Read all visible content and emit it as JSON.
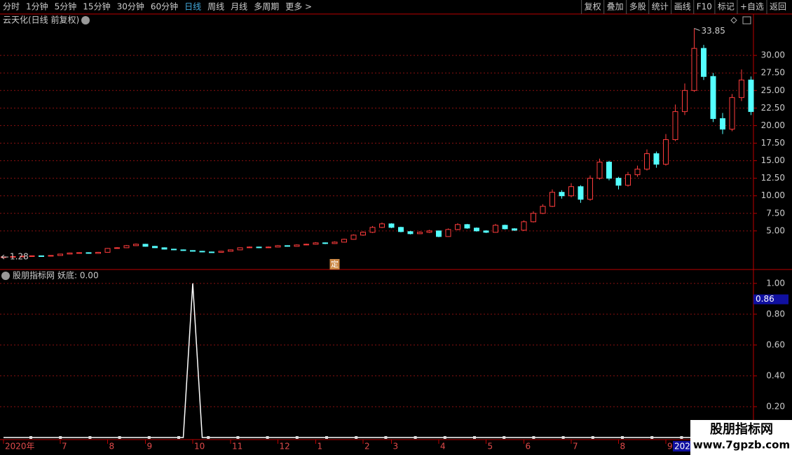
{
  "toolbar": {
    "left": [
      "分时",
      "1分钟",
      "5分钟",
      "15分钟",
      "30分钟",
      "60分钟",
      "日线",
      "周线",
      "月线",
      "多周期",
      "更多 >"
    ],
    "active": "日线",
    "right": [
      "复权",
      "叠加",
      "多股",
      "统计",
      "画线",
      "F10",
      "标记",
      "+自选",
      "返回"
    ]
  },
  "chart_data": [
    {
      "type": "candlestick",
      "title": "云天化(日线 前复权)",
      "up_color": "#ff3c3c",
      "down_color": "#54ffff",
      "grid": true,
      "high_marker": 33.85,
      "low_marker": 1.28,
      "flag_label": "定",
      "x_cursor_label": "202",
      "categories": [
        "2020年",
        null,
        null,
        null,
        null,
        null,
        "7",
        null,
        null,
        null,
        null,
        "8",
        null,
        null,
        null,
        "9",
        null,
        null,
        null,
        null,
        "10",
        null,
        null,
        null,
        "11",
        null,
        null,
        null,
        null,
        "12",
        null,
        null,
        null,
        "1",
        null,
        null,
        null,
        null,
        "2",
        null,
        null,
        "3",
        null,
        null,
        null,
        null,
        "4",
        null,
        null,
        null,
        null,
        "5",
        null,
        null,
        null,
        "6",
        null,
        null,
        null,
        null,
        "7",
        null,
        null,
        null,
        null,
        "8",
        null,
        null,
        null,
        null,
        "9",
        null,
        null,
        null,
        null,
        null,
        null,
        null,
        null,
        null
      ],
      "candles": [
        [
          1.28,
          1.33,
          1.28,
          1.3
        ],
        [
          1.3,
          1.38,
          1.28,
          1.35
        ],
        [
          1.35,
          1.43,
          1.33,
          1.4
        ],
        [
          1.4,
          1.48,
          1.37,
          1.45
        ],
        [
          1.45,
          1.47,
          1.37,
          1.4
        ],
        [
          1.4,
          1.54,
          1.38,
          1.5
        ],
        [
          1.5,
          1.74,
          1.47,
          1.7
        ],
        [
          1.7,
          1.9,
          1.66,
          1.85
        ],
        [
          1.85,
          1.96,
          1.8,
          1.9
        ],
        [
          1.9,
          1.95,
          1.75,
          1.8
        ],
        [
          1.8,
          2.0,
          1.76,
          1.95
        ],
        [
          1.95,
          2.56,
          1.92,
          2.5
        ],
        [
          2.5,
          2.68,
          2.44,
          2.6
        ],
        [
          2.6,
          2.98,
          2.55,
          2.9
        ],
        [
          2.9,
          3.2,
          2.85,
          3.1
        ],
        [
          3.1,
          3.15,
          2.75,
          2.8
        ],
        [
          2.8,
          2.86,
          2.55,
          2.6
        ],
        [
          2.6,
          2.65,
          2.35,
          2.4
        ],
        [
          2.4,
          2.45,
          2.25,
          2.3
        ],
        [
          2.3,
          2.36,
          2.15,
          2.2
        ],
        [
          2.2,
          2.25,
          2.05,
          2.1
        ],
        [
          2.1,
          2.15,
          1.95,
          2.0
        ],
        [
          2.0,
          2.05,
          1.9,
          1.95
        ],
        [
          1.95,
          2.15,
          1.92,
          2.1
        ],
        [
          2.1,
          2.36,
          2.06,
          2.3
        ],
        [
          2.3,
          2.66,
          2.26,
          2.6
        ],
        [
          2.6,
          2.78,
          2.55,
          2.7
        ],
        [
          2.7,
          2.75,
          2.54,
          2.6
        ],
        [
          2.6,
          2.78,
          2.56,
          2.7
        ],
        [
          2.7,
          2.98,
          2.65,
          2.9
        ],
        [
          2.9,
          2.95,
          2.74,
          2.8
        ],
        [
          2.8,
          3.08,
          2.76,
          3.0
        ],
        [
          3.0,
          3.18,
          2.95,
          3.1
        ],
        [
          3.1,
          3.4,
          3.05,
          3.3
        ],
        [
          3.3,
          3.36,
          3.12,
          3.2
        ],
        [
          3.2,
          3.5,
          3.15,
          3.4
        ],
        [
          3.4,
          3.9,
          3.35,
          3.8
        ],
        [
          3.8,
          4.5,
          3.75,
          4.4
        ],
        [
          4.4,
          4.95,
          4.3,
          4.8
        ],
        [
          4.8,
          5.7,
          4.7,
          5.5
        ],
        [
          5.5,
          6.2,
          5.4,
          6.0
        ],
        [
          6.0,
          6.1,
          5.4,
          5.5
        ],
        [
          5.5,
          5.6,
          4.8,
          4.9
        ],
        [
          4.9,
          5.0,
          4.5,
          4.6
        ],
        [
          4.6,
          4.95,
          4.55,
          4.8
        ],
        [
          4.8,
          5.15,
          4.7,
          5.0
        ],
        [
          5.0,
          5.05,
          4.1,
          4.2
        ],
        [
          4.2,
          5.35,
          4.15,
          5.2
        ],
        [
          5.2,
          6.1,
          5.1,
          5.9
        ],
        [
          5.9,
          6.0,
          5.3,
          5.4
        ],
        [
          5.4,
          5.5,
          4.9,
          5.0
        ],
        [
          5.0,
          5.1,
          4.7,
          4.8
        ],
        [
          4.8,
          6.0,
          4.75,
          5.8
        ],
        [
          5.8,
          5.9,
          5.2,
          5.3
        ],
        [
          5.3,
          5.4,
          5.0,
          5.1
        ],
        [
          5.1,
          6.5,
          5.0,
          6.3
        ],
        [
          6.3,
          7.8,
          6.2,
          7.5
        ],
        [
          7.5,
          8.8,
          7.4,
          8.5
        ],
        [
          8.5,
          10.9,
          8.4,
          10.5
        ],
        [
          10.5,
          10.8,
          9.6,
          10.0
        ],
        [
          10.0,
          11.8,
          9.8,
          11.3
        ],
        [
          11.3,
          11.5,
          9.0,
          9.5
        ],
        [
          9.5,
          12.9,
          9.3,
          12.5
        ],
        [
          12.5,
          15.3,
          12.3,
          14.8
        ],
        [
          14.8,
          15.0,
          12.2,
          12.5
        ],
        [
          12.5,
          12.7,
          10.9,
          11.5
        ],
        [
          11.5,
          13.4,
          11.3,
          13.0
        ],
        [
          13.0,
          14.3,
          12.7,
          13.8
        ],
        [
          13.8,
          16.6,
          13.6,
          16.0
        ],
        [
          16.0,
          16.3,
          14.0,
          14.5
        ],
        [
          14.5,
          18.8,
          14.3,
          18.0
        ],
        [
          18.0,
          23.0,
          17.8,
          22.0
        ],
        [
          22.0,
          26.0,
          21.5,
          25.0
        ],
        [
          25.0,
          33.85,
          24.8,
          31.0
        ],
        [
          31.0,
          31.5,
          26.5,
          27.0
        ],
        [
          27.0,
          27.5,
          20.5,
          21.0
        ],
        [
          21.0,
          21.8,
          18.8,
          19.5
        ],
        [
          19.5,
          24.5,
          19.2,
          24.0
        ],
        [
          24.0,
          28.0,
          23.5,
          26.5
        ],
        [
          26.5,
          27.0,
          21.5,
          22.0
        ]
      ],
      "ylim": [
        -0.5,
        35.7
      ],
      "yticks": [
        {
          "value": 5,
          "label": "5.00"
        },
        {
          "value": 7.5,
          "label": "7.50"
        },
        {
          "value": 10,
          "label": "10.00"
        },
        {
          "value": 12.5,
          "label": "12.50"
        },
        {
          "value": 15,
          "label": "15.00"
        },
        {
          "value": 17.5,
          "label": "17.50"
        },
        {
          "value": 20,
          "label": "20.00"
        },
        {
          "value": 22.5,
          "label": "22.50"
        },
        {
          "value": 25,
          "label": "25.00"
        },
        {
          "value": 27.5,
          "label": "27.50"
        },
        {
          "value": 30,
          "label": "30.00"
        }
      ]
    },
    {
      "type": "line",
      "title": "股朋指标网",
      "subtitle": "妖底: 0.00",
      "color": "#ffffff",
      "grid": true,
      "cursor_value": {
        "value": 0.86,
        "label": "0.86"
      },
      "values": [
        0,
        0,
        0,
        0,
        0,
        0,
        0,
        0,
        0,
        0,
        0,
        0,
        0,
        0,
        0,
        0,
        0,
        0,
        0,
        0,
        1.0,
        0,
        0,
        0,
        0,
        0,
        0,
        0,
        0,
        0,
        0,
        0,
        0,
        0,
        0,
        0,
        0,
        0,
        0,
        0,
        0,
        0,
        0,
        0,
        0,
        0,
        0,
        0,
        0,
        0,
        0,
        0,
        0,
        0,
        0,
        0,
        0,
        0,
        0,
        0,
        0,
        0,
        0,
        0,
        0,
        0,
        0,
        0,
        0,
        0,
        0,
        0,
        0,
        0,
        0,
        0,
        0,
        0,
        0,
        0
      ],
      "ylim": [
        0,
        1.09
      ],
      "yticks": [
        {
          "value": 0.2,
          "label": "0.20"
        },
        {
          "value": 0.4,
          "label": "0.40"
        },
        {
          "value": 0.6,
          "label": "0.60"
        },
        {
          "value": 0.8,
          "label": "0.80"
        },
        {
          "value": 1.0,
          "label": "1.00"
        }
      ]
    }
  ],
  "watermark": {
    "title": "股朋指标网",
    "url": "www.7gpzb.com"
  }
}
